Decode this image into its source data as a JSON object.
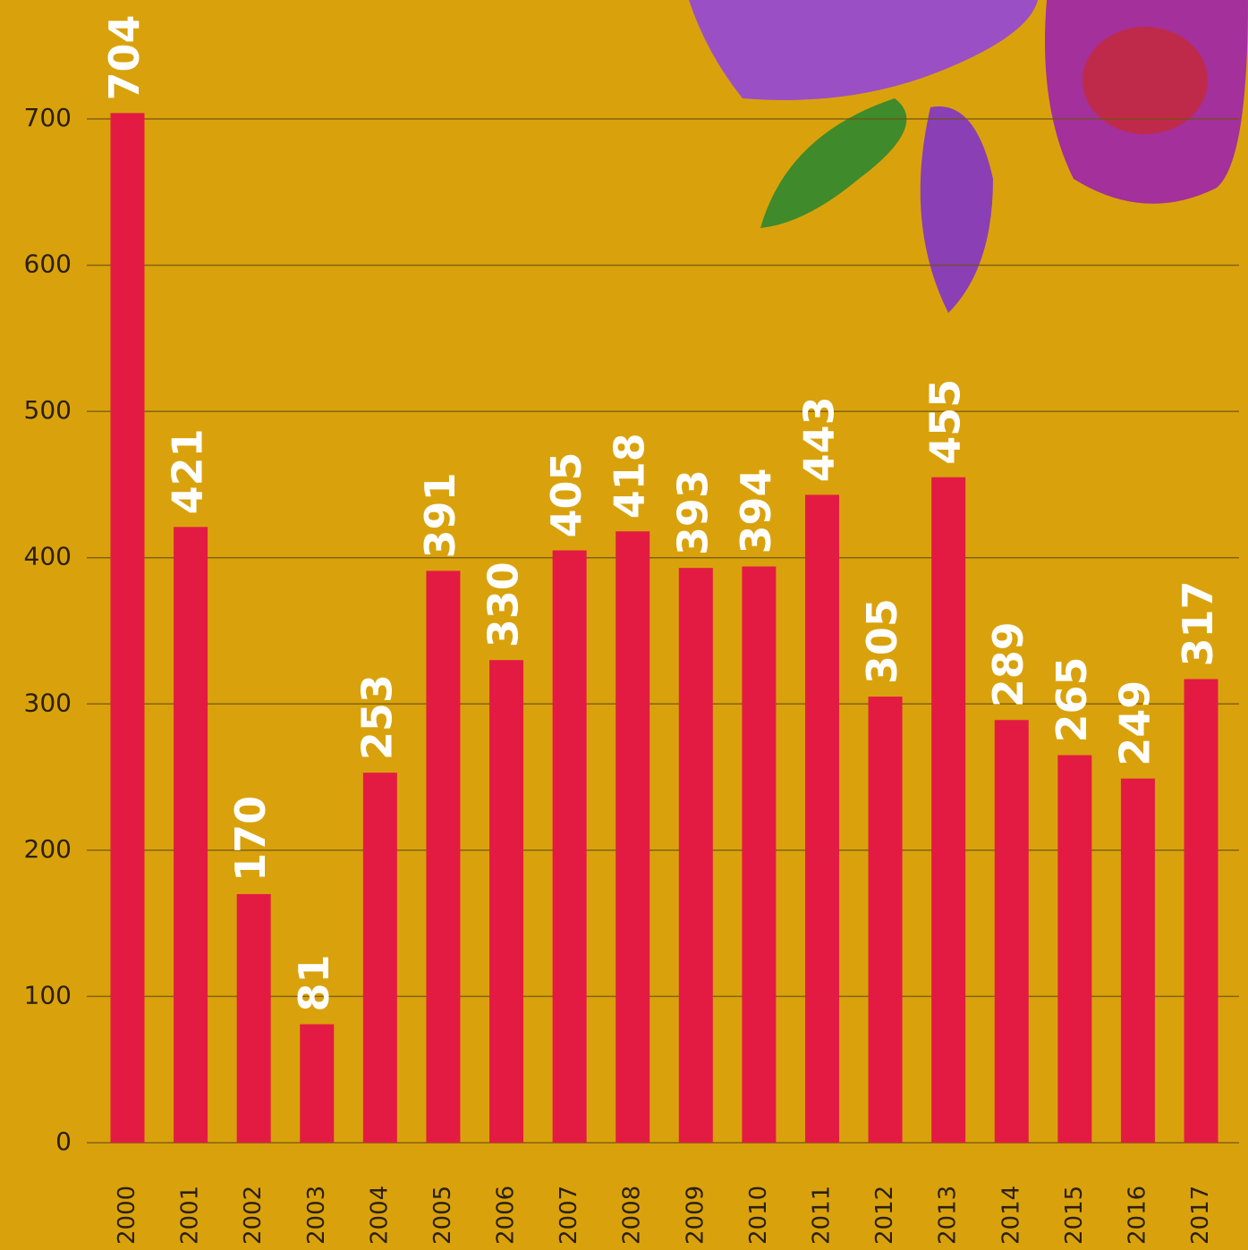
{
  "chart_data": {
    "type": "bar",
    "categories": [
      "2000",
      "2001",
      "2002",
      "2003",
      "2004",
      "2005",
      "2006",
      "2007",
      "2008",
      "2009",
      "2010",
      "2011",
      "2012",
      "2013",
      "2014",
      "2015",
      "2016",
      "2017"
    ],
    "values": [
      704,
      421,
      170,
      81,
      253,
      391,
      330,
      405,
      418,
      393,
      394,
      443,
      305,
      455,
      289,
      265,
      249,
      317
    ],
    "color": "#e31b42",
    "ylim": [
      0,
      700
    ],
    "yticks": [
      0,
      100,
      200,
      300,
      400,
      500,
      600,
      700
    ],
    "grid": true
  }
}
